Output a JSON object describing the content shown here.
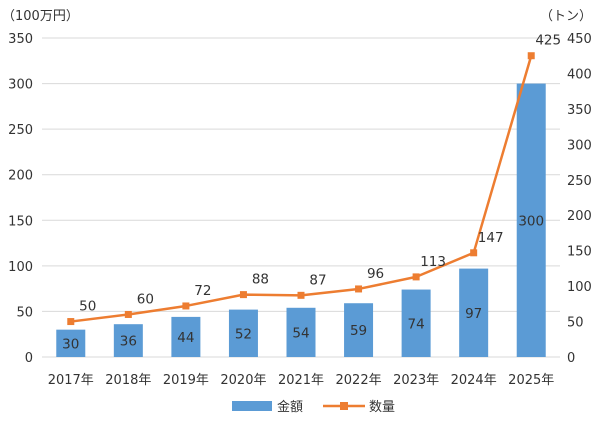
{
  "chart_data": {
    "type": "bar+line",
    "categories": [
      "2017年",
      "2018年",
      "2019年",
      "2020年",
      "2021年",
      "2022年",
      "2023年",
      "2024年",
      "2025年"
    ],
    "series": [
      {
        "name": "金額",
        "type": "bar",
        "axis": "left",
        "color": "#5b9bd5",
        "values": [
          30,
          36,
          44,
          52,
          54,
          59,
          74,
          97,
          300
        ]
      },
      {
        "name": "数量",
        "type": "line",
        "axis": "right",
        "color": "#ed7d31",
        "values": [
          50,
          60,
          72,
          88,
          87,
          96,
          113,
          147,
          425
        ]
      }
    ],
    "left_axis": {
      "unit": "（100万円）",
      "min": 0,
      "max": 350,
      "step": 50,
      "ticks": [
        "0",
        "50",
        "100",
        "150",
        "200",
        "250",
        "300",
        "350"
      ]
    },
    "right_axis": {
      "unit": "（トン）",
      "min": 0,
      "max": 450,
      "step": 50,
      "ticks": [
        "0",
        "50",
        "100",
        "150",
        "200",
        "250",
        "300",
        "350",
        "400",
        "450"
      ]
    },
    "grid": true,
    "legend": {
      "position": "bottom",
      "items": [
        "金額",
        "数量"
      ]
    }
  }
}
